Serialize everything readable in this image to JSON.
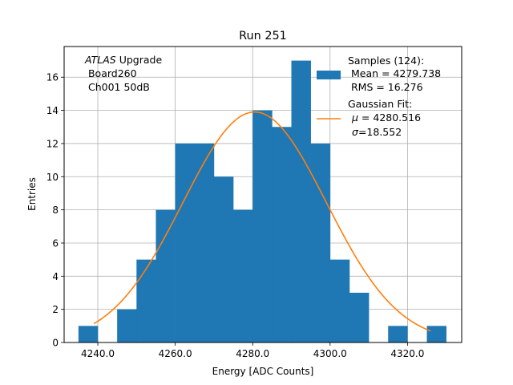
{
  "chart_data": {
    "type": "bar",
    "title": "Run 251",
    "xlabel": "Energy [ADC Counts]",
    "ylabel": "Entries",
    "xlim": [
      4231.3,
      4334.0
    ],
    "ylim": [
      0,
      17.85
    ],
    "grid": true,
    "x_ticks": [
      4240,
      4260,
      4280,
      4300,
      4320
    ],
    "x_tick_labels": [
      "4240.0",
      "4260.0",
      "4280.0",
      "4300.0",
      "4320.0"
    ],
    "y_ticks": [
      0,
      2,
      4,
      6,
      8,
      10,
      12,
      14,
      16
    ],
    "y_tick_labels": [
      "0",
      "2",
      "4",
      "6",
      "8",
      "10",
      "12",
      "14",
      "16"
    ],
    "histogram": {
      "bin_edges": [
        4235,
        4240,
        4245,
        4250,
        4255,
        4260,
        4265,
        4270,
        4275,
        4280,
        4285,
        4290,
        4295,
        4300,
        4305,
        4310,
        4315,
        4320,
        4325,
        4330
      ],
      "counts": [
        1,
        0,
        2,
        5,
        8,
        12,
        12,
        10,
        8,
        14,
        13,
        17,
        12,
        5,
        3,
        0,
        1,
        0,
        1
      ],
      "color": "#1f77b4"
    },
    "fit": {
      "name": "Gaussian Fit",
      "mu": 4280.516,
      "sigma": 18.552,
      "amplitude": 13.9,
      "x_range": [
        4239,
        4326
      ],
      "color": "#ff7f0e"
    },
    "annotation": {
      "line1_italic": "ATLAS",
      "line1_rest": " Upgrade",
      "line2": " Board260",
      "line3": " Ch001 50dB"
    },
    "legend": {
      "placement": "top-right",
      "samples_title": "Samples (124):",
      "samples_mean": " Mean = 4279.738",
      "samples_rms": " RMS = 16.276",
      "fit_title": "Gaussian Fit:",
      "fit_mu_symbol": "μ",
      "fit_mu_text": " = 4280.516",
      "fit_sigma_symbol": "σ",
      "fit_sigma_text": "=18.552"
    }
  }
}
